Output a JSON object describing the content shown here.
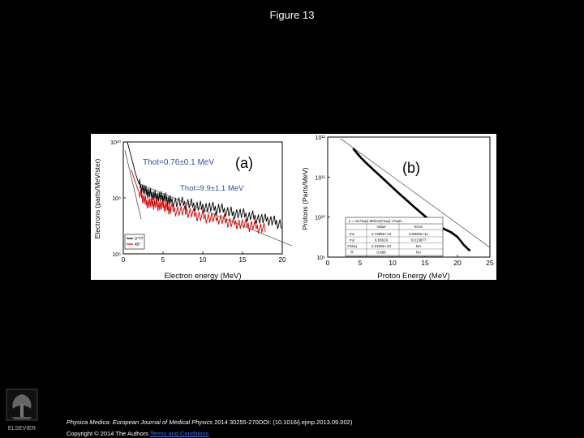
{
  "figure_title": "Figure 13",
  "footer": {
    "journal": "Physica Medica: European Journal of Medical Physics",
    "citation": "2014 30255-270DOI: (10.1016/j.ejmp.2013.09.002)",
    "copyright": "Copyright © 2014 The Authors",
    "terms_link": "Terms and Conditions"
  },
  "publisher_logo_text": "ELSEVIER",
  "chart_data": [
    {
      "type": "line",
      "panel_label": "(a)",
      "xlabel": "Electron energy (MeV)",
      "ylabel": "Electrons (parts/MeV/ster)",
      "xlim": [
        0,
        20
      ],
      "ylim": [
        1000000.0,
        10000000000.0
      ],
      "yscale": "log",
      "x_ticks": [
        "0",
        "5",
        "10",
        "15",
        "20"
      ],
      "y_ticks": [
        "10⁶",
        "10⁸",
        "10¹⁰"
      ],
      "annotations": [
        "Thot=0.76±0.1 MeV",
        "Thot=9.9±1.1 MeV"
      ],
      "legend_position": "bottom-left",
      "series": [
        {
          "name": "0°??",
          "color": "#000000",
          "x": [
            0.5,
            1,
            1.5,
            2,
            3,
            4,
            5,
            6,
            8,
            10,
            12,
            14,
            16,
            18,
            20
          ],
          "y": [
            10000000000.0,
            3000000000.0,
            800000000.0,
            300000000.0,
            150000000.0,
            120000000.0,
            100000000.0,
            80000000.0,
            60000000.0,
            50000000.0,
            40000000.0,
            30000000.0,
            22000000.0,
            16000000.0,
            12000000.0
          ]
        },
        {
          "name": "45°",
          "color": "#e00000",
          "x": [
            1,
            2,
            3,
            4,
            5,
            6,
            8,
            10,
            12,
            14,
            16,
            18
          ],
          "y": [
            1000000000.0,
            150000000.0,
            70000000.0,
            60000000.0,
            50000000.0,
            40000000.0,
            30000000.0,
            22000000.0,
            17000000.0,
            13000000.0,
            10000000.0,
            8000000.0
          ]
        }
      ]
    },
    {
      "type": "scatter",
      "panel_label": "(b)",
      "xlabel": "Proton Energy (MeV)",
      "ylabel": "Protons (Parts/MeV)",
      "xlim": [
        0,
        25
      ],
      "ylim": [
        1000000000.0,
        1000000000000.0
      ],
      "yscale": "log",
      "x_ticks": [
        "0",
        "5",
        "10",
        "15",
        "20",
        "25"
      ],
      "y_ticks": [
        "10⁹",
        "10¹⁰",
        "10¹¹",
        "10¹²"
      ],
      "fit_equation": "y = m1*exp(-M0/m2)*exp(-1*sqrt...",
      "fit_table": {
        "headers": [
          "",
          "Value",
          "Error"
        ],
        "rows": [
          [
            "m1",
            "2.7385e+13",
            "6.6820e+11"
          ],
          [
            "m2",
            "0.83616",
            "0.013877"
          ],
          [
            "Chisq",
            "2.2429e+22",
            "NA"
          ],
          [
            "R",
            "0.998",
            "NA"
          ]
        ]
      },
      "series": [
        {
          "name": "data",
          "x": [
            4,
            4.5,
            5,
            6,
            7,
            8,
            9,
            10,
            11,
            12,
            13,
            14,
            15,
            16,
            17,
            18,
            19,
            20,
            21,
            22
          ],
          "y": [
            500000000000.0,
            400000000000.0,
            320000000000.0,
            220000000000.0,
            155000000000.0,
            110000000000.0,
            78000000000.0,
            55000000000.0,
            39000000000.0,
            28000000000.0,
            20000000000.0,
            14500000000.0,
            10500000000.0,
            7800000000.0,
            6000000000.0,
            5000000000.0,
            4200000000.0,
            3200000000.0,
            2000000000.0,
            1400000000.0
          ]
        }
      ]
    }
  ]
}
